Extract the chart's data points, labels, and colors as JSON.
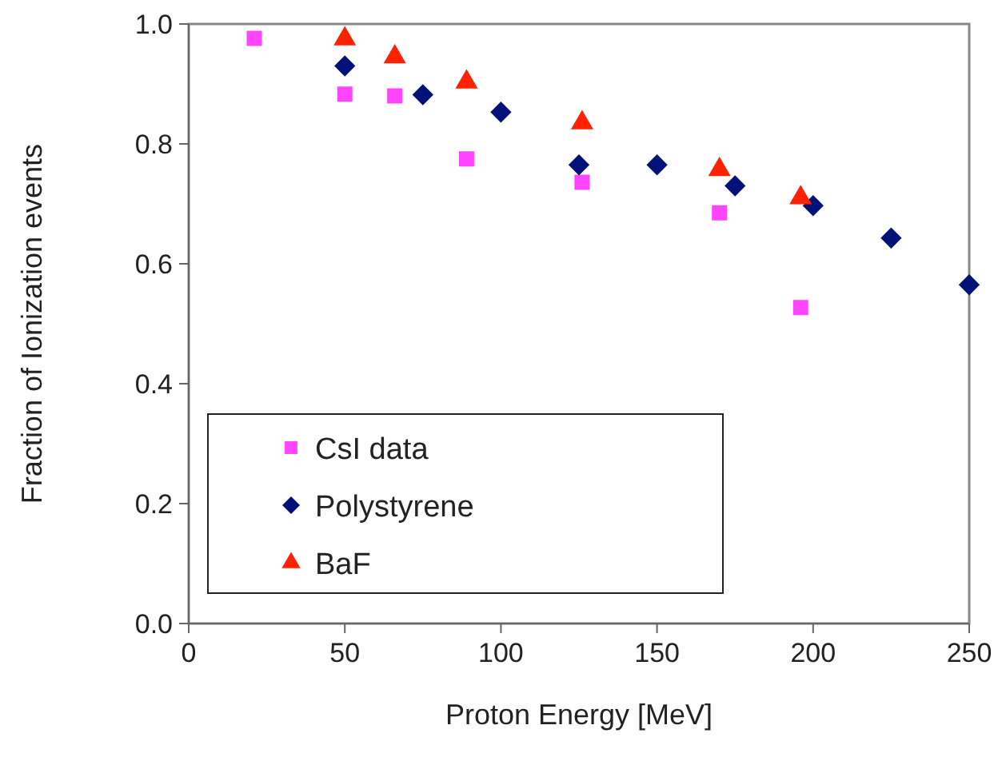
{
  "chart_data": {
    "type": "scatter",
    "xlabel": "Proton Energy [MeV]",
    "ylabel": "Fraction of Ionization events",
    "xlim": [
      0,
      250
    ],
    "xticks": [
      0,
      50,
      100,
      150,
      200,
      250
    ],
    "ylim": [
      0,
      1
    ],
    "yticks": [
      {
        "value": 0,
        "label": "0.0"
      },
      {
        "value": 0.2,
        "label": "0.2"
      },
      {
        "value": 0.4,
        "label": "0.4"
      },
      {
        "value": 0.6,
        "label": "0.6"
      },
      {
        "value": 0.8,
        "label": "0.8"
      },
      {
        "value": 1,
        "label": "1.0"
      }
    ],
    "grid": false,
    "legend": "bottom left",
    "series": [
      {
        "name": "CsI data",
        "color": "#ff44ff",
        "marker": "square",
        "x": [
          21,
          50,
          66,
          89,
          126,
          170,
          196
        ],
        "values": [
          0.976,
          0.883,
          0.88,
          0.775,
          0.736,
          0.685,
          0.527
        ]
      },
      {
        "name": "Polystyrene",
        "color": "#001177",
        "marker": "diamond",
        "x": [
          50,
          75,
          100,
          125,
          150,
          175,
          200,
          225,
          250
        ],
        "values": [
          0.93,
          0.882,
          0.853,
          0.765,
          0.765,
          0.73,
          0.697,
          0.643,
          0.565
        ]
      },
      {
        "name": "BaF",
        "color": "#ff2200",
        "marker": "triangle",
        "x": [
          50,
          66,
          89,
          126,
          170,
          196
        ],
        "values": [
          0.975,
          0.945,
          0.903,
          0.835,
          0.757,
          0.71
        ]
      }
    ]
  }
}
